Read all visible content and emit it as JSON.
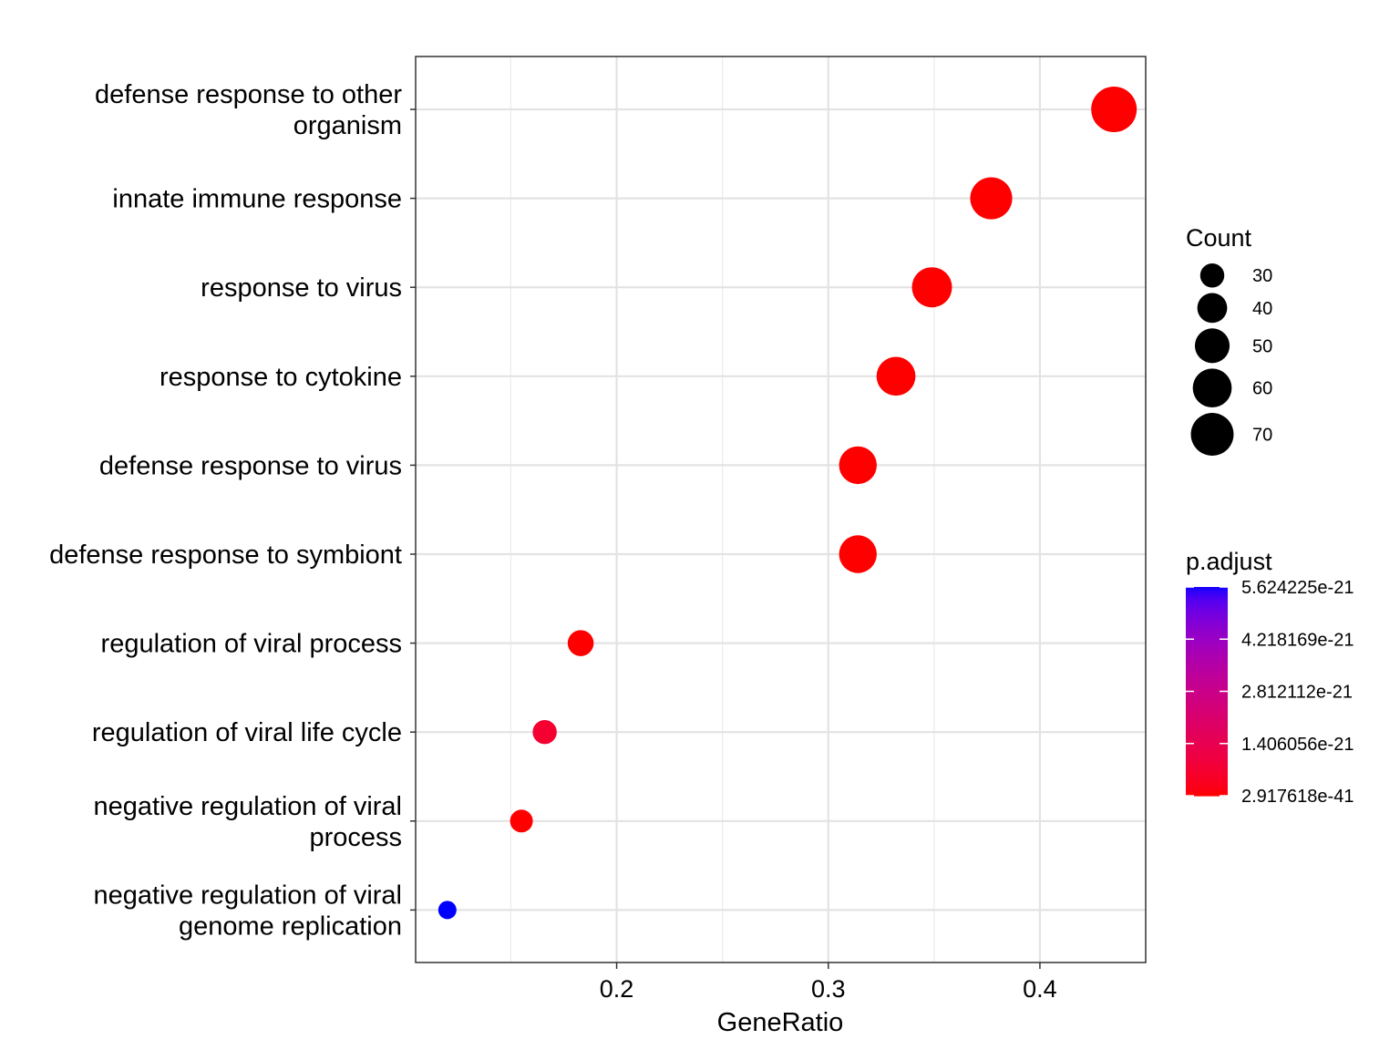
{
  "chart_data": {
    "type": "scatter",
    "xlabel": "GeneRatio",
    "ylabel": "",
    "title": "",
    "xlim": [
      0.105,
      0.45
    ],
    "x_ticks": [
      0.2,
      0.3,
      0.4
    ],
    "x_tick_labels": [
      "0.2",
      "0.3",
      "0.4"
    ],
    "grid": true,
    "legend_position": "right",
    "terms": [
      {
        "lines": [
          "defense response to other",
          "organism"
        ],
        "gene_ratio": 0.435,
        "count": 78,
        "p_adjust": 2.917618e-41
      },
      {
        "lines": [
          "innate immune response"
        ],
        "gene_ratio": 0.377,
        "count": 68,
        "p_adjust": 5e-40
      },
      {
        "lines": [
          "response to virus"
        ],
        "gene_ratio": 0.349,
        "count": 63,
        "p_adjust": 1e-38
      },
      {
        "lines": [
          "response to cytokine"
        ],
        "gene_ratio": 0.332,
        "count": 60,
        "p_adjust": 1e-30
      },
      {
        "lines": [
          "defense response to virus"
        ],
        "gene_ratio": 0.314,
        "count": 57,
        "p_adjust": 1e-35
      },
      {
        "lines": [
          "defense response to symbiont"
        ],
        "gene_ratio": 0.314,
        "count": 57,
        "p_adjust": 1e-35
      },
      {
        "lines": [
          "regulation of viral process"
        ],
        "gene_ratio": 0.183,
        "count": 33,
        "p_adjust": 1e-28
      },
      {
        "lines": [
          "regulation of viral life cycle"
        ],
        "gene_ratio": 0.166,
        "count": 30,
        "p_adjust": 7e-22
      },
      {
        "lines": [
          "negative regulation of viral",
          "process"
        ],
        "gene_ratio": 0.155,
        "count": 28,
        "p_adjust": 1e-25
      },
      {
        "lines": [
          "negative regulation of viral",
          "genome replication"
        ],
        "gene_ratio": 0.12,
        "count": 22,
        "p_adjust": 5.624225e-21
      }
    ],
    "size_legend": {
      "title": "Count",
      "breaks": [
        30,
        40,
        50,
        60,
        70
      ],
      "labels": [
        "30",
        "40",
        "50",
        "60",
        "70"
      ]
    },
    "color_legend": {
      "title": "p.adjust",
      "low_color": "#FF0000",
      "high_color": "#0000FF",
      "min": 2.917618e-41,
      "max": 5.624225e-21,
      "labels": [
        {
          "value": 5.624225e-21,
          "text": "5.624225e-21"
        },
        {
          "value": 4.218169e-21,
          "text": "4.218169e-21"
        },
        {
          "value": 2.812112e-21,
          "text": "2.812112e-21"
        },
        {
          "value": 1.406056e-21,
          "text": "1.406056e-21"
        },
        {
          "value": 2.917618e-41,
          "text": "2.917618e-41"
        }
      ]
    }
  }
}
